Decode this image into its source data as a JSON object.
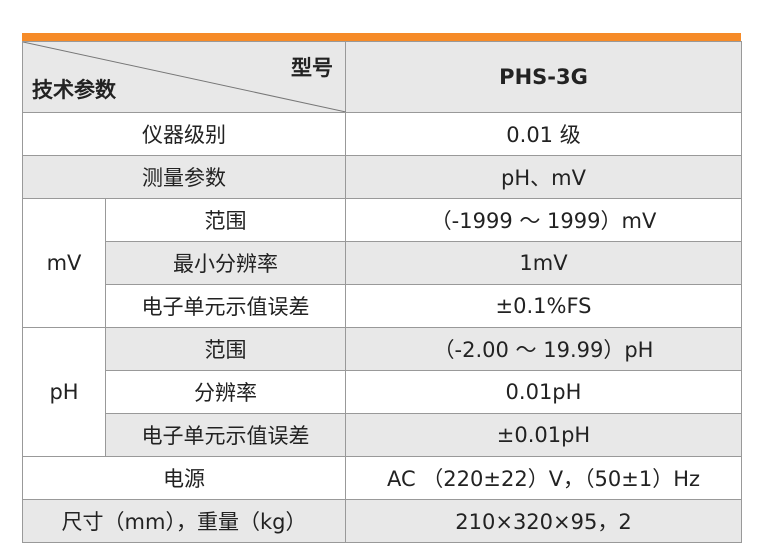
{
  "header": {
    "row_label": "型号",
    "col_label": "技术参数",
    "model": "PHS-3G"
  },
  "rows": {
    "grade": {
      "label": "仪器级别",
      "value": "0.01 级"
    },
    "measure": {
      "label": "测量参数",
      "value": "pH、mV"
    },
    "mv": {
      "group": "mV",
      "range": {
        "label": "范围",
        "value": "（-1999 ～ 1999）mV"
      },
      "resolution": {
        "label": "最小分辨率",
        "value": "1mV"
      },
      "error": {
        "label": "电子单元示值误差",
        "value": "±0.1%FS"
      }
    },
    "ph": {
      "group": "pH",
      "range": {
        "label": "范围",
        "value": "（-2.00 ～ 19.99）pH"
      },
      "resolution": {
        "label": "分辨率",
        "value": "0.01pH"
      },
      "error": {
        "label": "电子单元示值误差",
        "value": "±0.01pH"
      }
    },
    "power": {
      "label": "电源",
      "value": "AC （220±22）V，（50±1）Hz"
    },
    "size": {
      "label": "尺寸（mm），重量（kg）",
      "value": "210×320×95，2"
    }
  },
  "colors": {
    "accent": "#f68b28",
    "stripe": "#e8e8e8"
  }
}
